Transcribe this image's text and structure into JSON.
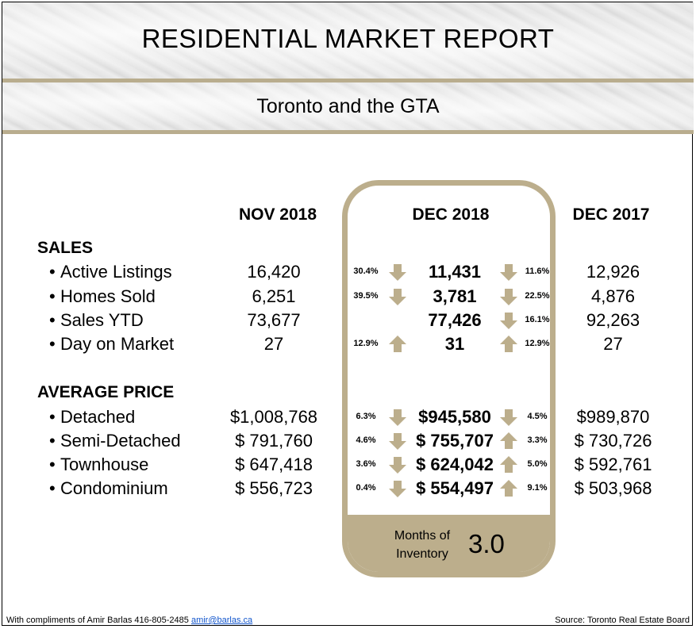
{
  "header": {
    "title": "RESIDENTIAL MARKET REPORT",
    "subtitle": "Toronto and the GTA"
  },
  "columns": {
    "prev_month": "NOV 2018",
    "current": "DEC 2018",
    "prev_year": "DEC 2017"
  },
  "colors": {
    "gold": "#bcae8c",
    "line_gold": "#b9ad8e"
  },
  "sections": {
    "sales": "SALES",
    "price": "AVERAGE PRICE"
  },
  "sales_rows": [
    {
      "label": "Active Listings",
      "nov": "16,420",
      "pct_left": "30.4%",
      "dir_left": "down",
      "dec": "11,431",
      "dir_right": "down",
      "pct_right": "11.6%",
      "prev": "12,926"
    },
    {
      "label": "Homes Sold",
      "nov": "6,251",
      "pct_left": "39.5%",
      "dir_left": "down",
      "dec": "3,781",
      "dir_right": "down",
      "pct_right": "22.5%",
      "prev": "4,876"
    },
    {
      "label": "Sales YTD",
      "nov": "73,677",
      "pct_left": "",
      "dir_left": "none",
      "dec": "77,426",
      "dir_right": "down",
      "pct_right": "16.1%",
      "prev": "92,263"
    },
    {
      "label": "Day on Market",
      "nov": "27",
      "pct_left": "12.9%",
      "dir_left": "up",
      "dec": "31",
      "dir_right": "up",
      "pct_right": "12.9%",
      "prev": "27"
    }
  ],
  "price_rows": [
    {
      "label": "Detached",
      "nov": "$1,008,768",
      "pct_left": "6.3%",
      "dir_left": "down",
      "dec": "$945,580",
      "dir_right": "down",
      "pct_right": "4.5%",
      "prev": "$989,870"
    },
    {
      "label": "Semi-Detached",
      "nov": "$ 791,760",
      "pct_left": "4.6%",
      "dir_left": "down",
      "dec": "$ 755,707",
      "dir_right": "up",
      "pct_right": "3.3%",
      "prev": "$ 730,726"
    },
    {
      "label": "Townhouse",
      "nov": "$ 647,418",
      "pct_left": "3.6%",
      "dir_left": "down",
      "dec": "$ 624,042",
      "dir_right": "up",
      "pct_right": "5.0%",
      "prev": "$ 592,761"
    },
    {
      "label": "Condominium",
      "nov": "$ 556,723",
      "pct_left": "0.4%",
      "dir_left": "down",
      "dec": "$ 554,497",
      "dir_right": "up",
      "pct_right": "9.1%",
      "prev": "$ 503,968"
    }
  ],
  "inventory": {
    "label_line1": "Months of",
    "label_line2": "Inventory",
    "value": "3.0"
  },
  "footer": {
    "compliments": "With compliments of Amir Barlas 416-805-2485",
    "email": "amir@barlas.ca",
    "source": "Source: Toronto Real Estate Board"
  }
}
